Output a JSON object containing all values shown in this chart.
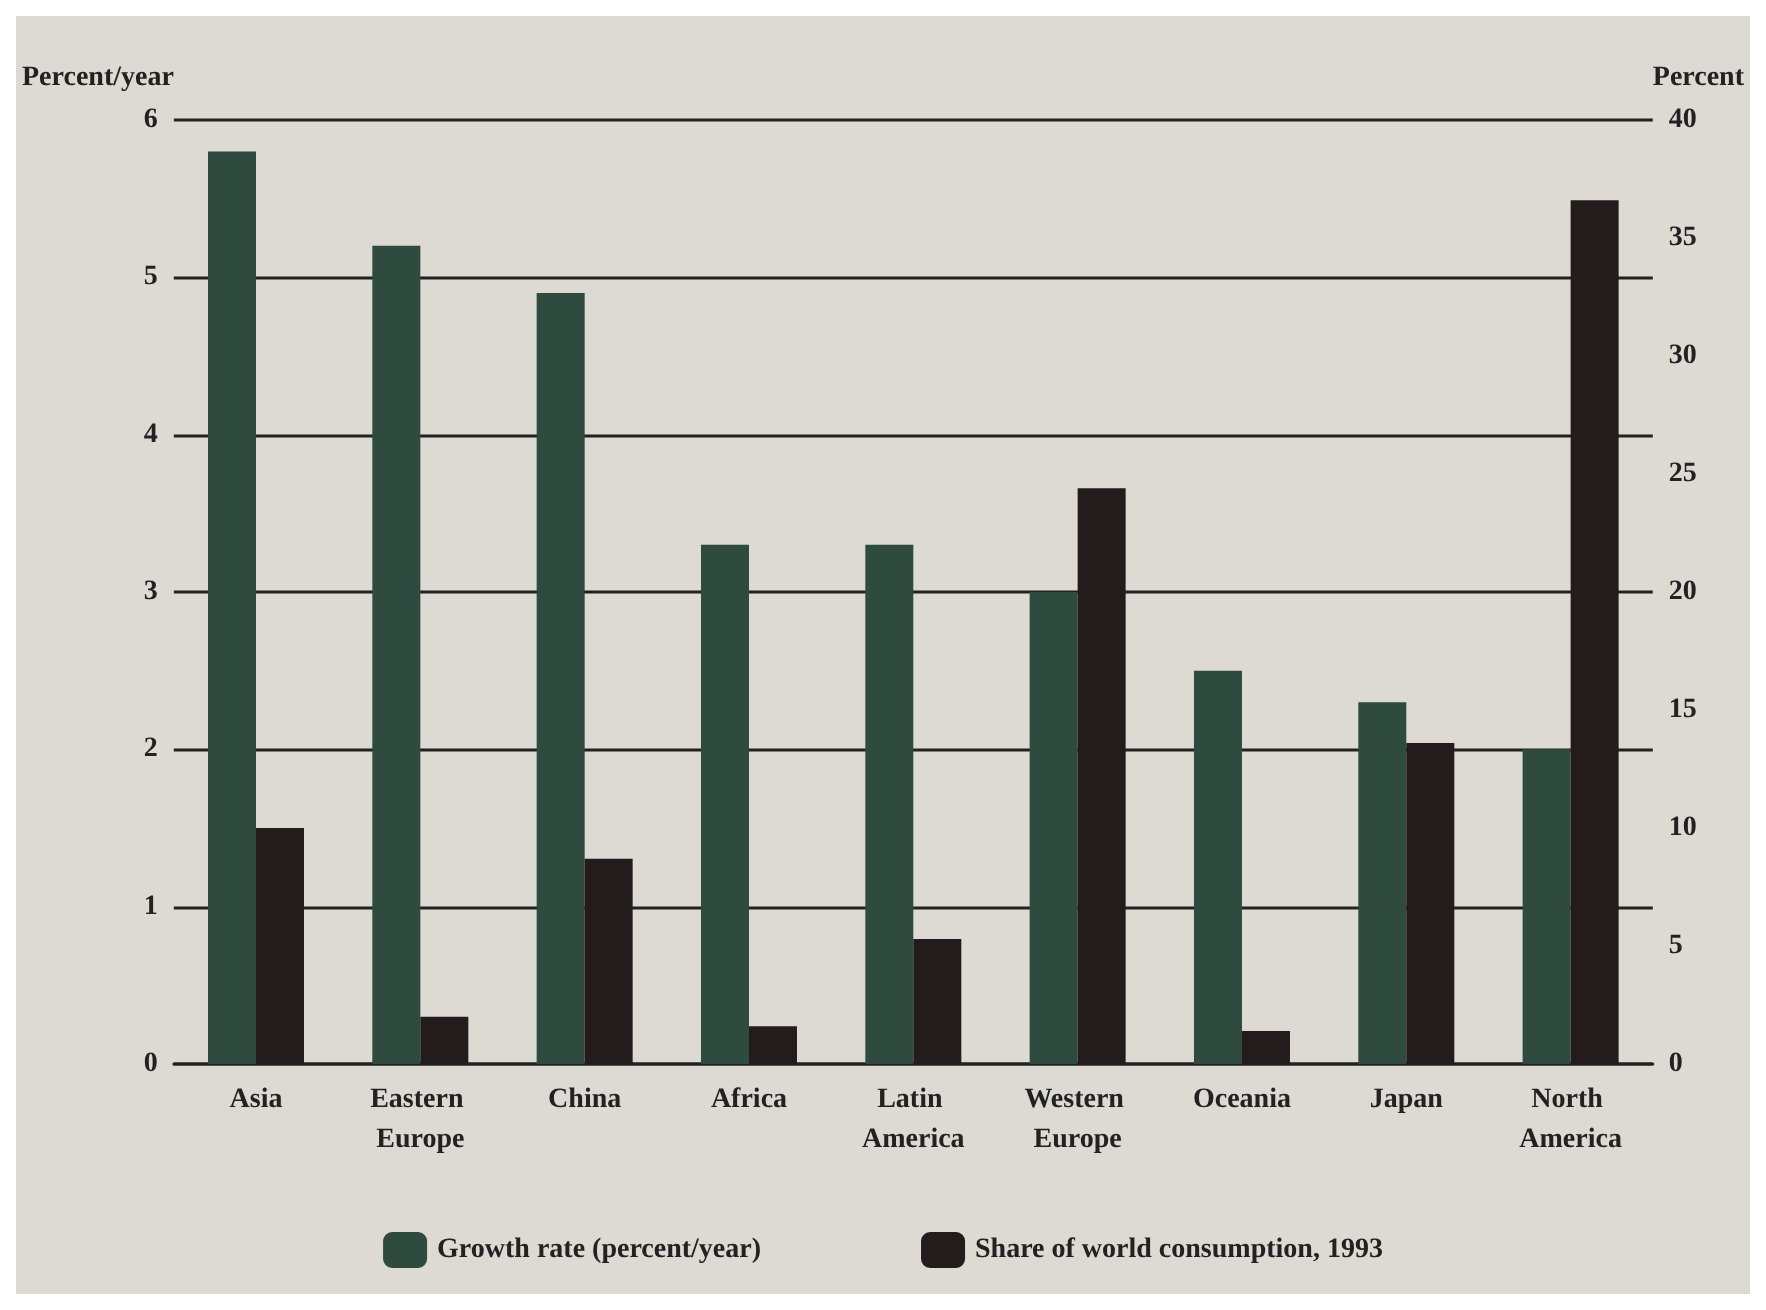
{
  "chart_data": {
    "type": "bar",
    "ylabel": "Percent/year",
    "y2label": "Percent",
    "categories": [
      "Asia",
      "Eastern Europe",
      "China",
      "Africa",
      "Latin America",
      "Western Europe",
      "Oceania",
      "Japan",
      "North America"
    ],
    "series": [
      {
        "name": "Growth rate (percent/year)",
        "color": "#2f4a3e",
        "values": [
          5.8,
          5.2,
          4.9,
          3.3,
          3.3,
          3.0,
          2.5,
          2.3,
          2.0
        ]
      },
      {
        "name": "Share of world consumption, 1993",
        "color": "#241c1c",
        "axis": "y2",
        "values": [
          10,
          2,
          8.7,
          1.6,
          5.3,
          24.4,
          1.4,
          13.6,
          36.6
        ]
      }
    ],
    "ylim": [
      0,
      6
    ],
    "yticks": [
      0,
      1,
      2,
      3,
      4,
      5,
      6
    ],
    "y2lim": [
      0,
      40
    ],
    "y2ticks": [
      0,
      5,
      10,
      15,
      20,
      25,
      30,
      35,
      40
    ],
    "grid": "y",
    "legend": "bottom"
  }
}
